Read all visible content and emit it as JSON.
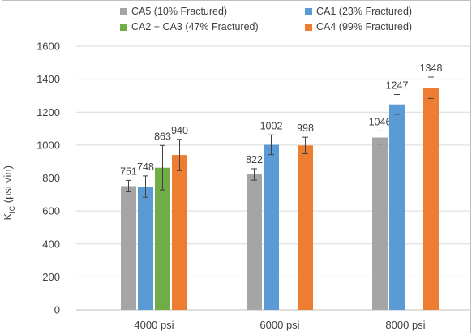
{
  "chart_data": {
    "type": "bar",
    "categories": [
      "4000 psi",
      "6000 psi",
      "8000 psi"
    ],
    "ylabel": "KIC (psi √in)",
    "ylabel_main": "K",
    "ylabel_sub": "IC",
    "ylabel_rest": " (psi √in)",
    "ylim": [
      0,
      1600
    ],
    "yticks": [
      "0",
      "200",
      "400",
      "600",
      "800",
      "1000",
      "1200",
      "1400",
      "1600"
    ],
    "grid": true,
    "legend_position": "top",
    "series": [
      {
        "name": "CA5 (10% Fractured)",
        "color": "#a5a5a5",
        "values": [
          751,
          822,
          1046
        ],
        "errors": [
          35,
          35,
          40
        ],
        "labels": [
          "751",
          "822",
          "1046"
        ]
      },
      {
        "name": "CA1 (23% Fractured)",
        "color": "#5b9bd5",
        "values": [
          748,
          1002,
          1247
        ],
        "errors": [
          65,
          60,
          60
        ],
        "labels": [
          "748",
          "1002",
          "1247"
        ]
      },
      {
        "name": "CA2 + CA3 (47% Fractured)",
        "color": "#70ad47",
        "values": [
          863,
          null,
          null
        ],
        "errors": [
          135,
          null,
          null
        ],
        "labels": [
          "863",
          "",
          ""
        ]
      },
      {
        "name": "CA4 (99% Fractured)",
        "color": "#ed7d31",
        "values": [
          940,
          998,
          1348
        ],
        "errors": [
          95,
          50,
          65
        ],
        "labels": [
          "940",
          "998",
          "1348"
        ]
      }
    ]
  }
}
